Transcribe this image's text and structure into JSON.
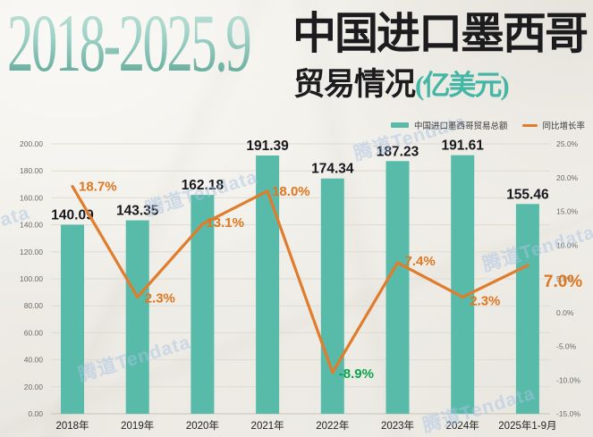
{
  "watermark": "腾道Tendata",
  "title": {
    "years": "2018-2025.9",
    "main": "中国进口墨西哥",
    "sub": "贸易情况",
    "unit": "(亿美元)"
  },
  "legend": {
    "items": [
      {
        "label": "中国进口墨西哥贸易总额",
        "marker": "bar-swatch"
      },
      {
        "label": "同比增长率",
        "marker": "line-swatch"
      }
    ]
  },
  "colors": {
    "bar": "#58bba9",
    "line": "#e07c2b",
    "line_label": "#e0761f",
    "line_label_negative": "#0aa44c",
    "value_label": "#17171d",
    "title_accent": "#45b6a5",
    "watermark": "#a9c4e4",
    "axis_text": "#6b6b66",
    "x_axis_text": "#222222",
    "grid": "#dedbd2",
    "baseline": "#c7c3ba"
  },
  "chart_data": {
    "type": "bar+line combo",
    "title": "2018-2025.9 中国进口墨西哥贸易情况(亿美元)",
    "categories": [
      "2018年",
      "2019年",
      "2020年",
      "2021年",
      "2022年",
      "2023年",
      "2024年",
      "2025年1-9月"
    ],
    "series": [
      {
        "name": "中国进口墨西哥贸易总额",
        "type": "bar",
        "axis": "left",
        "unit": "亿美元",
        "values": [
          140.09,
          143.35,
          162.18,
          191.39,
          174.34,
          187.23,
          191.61,
          155.46
        ],
        "labels": [
          "140.09",
          "143.35",
          "162.18",
          "191.39",
          "174.34",
          "187.23",
          "191.61",
          "155.46"
        ]
      },
      {
        "name": "同比增长率",
        "type": "line",
        "axis": "right",
        "unit": "%",
        "values": [
          18.7,
          2.3,
          13.1,
          18.0,
          -8.9,
          7.4,
          2.3,
          7.0
        ],
        "labels": [
          "18.7%",
          "2.3%",
          "13.1%",
          "18.0%",
          "-8.9%",
          "7.4%",
          "2.3%",
          "7.0%"
        ]
      }
    ],
    "left_axis": {
      "min": 0,
      "max": 200,
      "step": 20,
      "tick_labels": [
        "200.00",
        "180.00",
        "160.00",
        "140.00",
        "120.00",
        "100.00",
        "80.00",
        "60.00",
        "40.00",
        "20.00",
        "0.00"
      ]
    },
    "right_axis": {
      "min": -15,
      "max": 25,
      "step": 5,
      "tick_labels": [
        "25.0%",
        "20.0%",
        "15.0%",
        "10.0%",
        "5.0%",
        "0.0%",
        "-5.0%",
        "-10.0%",
        "-15.0%"
      ]
    },
    "grid": true,
    "legend_position": "top-right"
  }
}
